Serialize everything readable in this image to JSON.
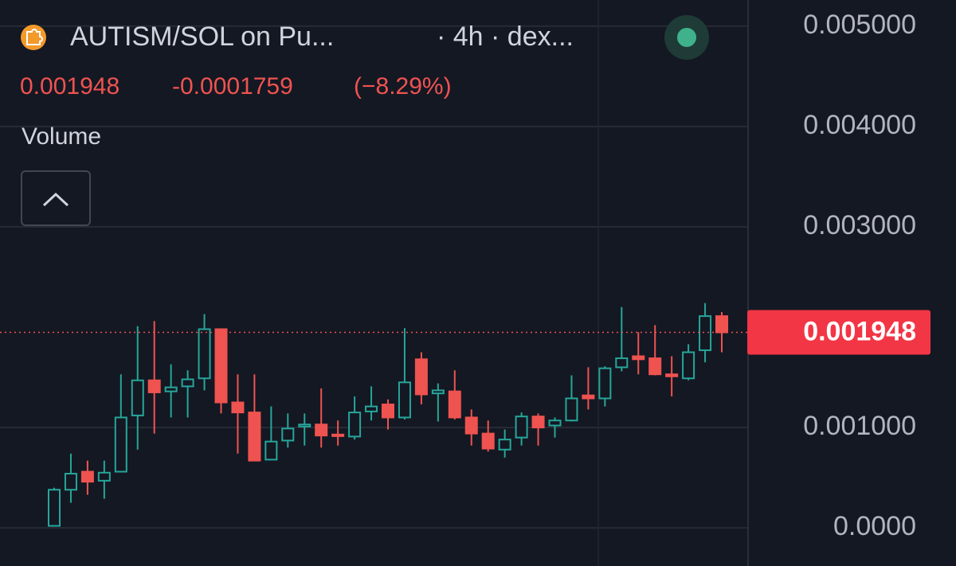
{
  "chart_data": {
    "type": "candlestick",
    "title": "AUTISM/SOL on Pu...",
    "subtitle": "· 4h · dex...",
    "last_price": 0.001948,
    "change": -0.0001759,
    "change_percent": {
      "value": -8.29,
      "label": "(−8.29%)"
    },
    "indicator": "Volume",
    "up_color": "#26a69a",
    "down_color": "#ef5350",
    "ylim": [
      -0.00038,
      0.00526
    ],
    "yticks": [
      {
        "value": 0.005,
        "label": "0.005000"
      },
      {
        "value": 0.004,
        "label": "0.004000"
      },
      {
        "value": 0.003,
        "label": "0.003000"
      },
      {
        "value": 0.001,
        "label": "0.001000"
      },
      {
        "value": 0,
        "label": "0.0000"
      }
    ],
    "grid": true,
    "open": [
      2e-05,
      0.00038,
      0.00056,
      0.00047,
      0.00056,
      0.00112,
      0.00147,
      0.00136,
      0.00141,
      0.00149,
      0.00198,
      0.00125,
      0.00115,
      0.00068,
      0.00087,
      0.00101,
      0.00103,
      0.00093,
      0.00091,
      0.00116,
      0.00123,
      0.0011,
      0.00168,
      0.00134,
      0.00136,
      0.0011,
      0.00094,
      0.00078,
      0.0009,
      0.00111,
      0.00102,
      0.00107,
      0.00132,
      0.00129,
      0.0016,
      0.00171,
      0.00169,
      0.00153,
      0.00149,
      0.00177,
      0.00211
    ],
    "high": [
      0.0004,
      0.00074,
      0.00067,
      0.00067,
      0.00153,
      0.00201,
      0.00206,
      0.00163,
      0.00157,
      0.00213,
      0.00198,
      0.00153,
      0.00153,
      0.00121,
      0.00114,
      0.00114,
      0.00139,
      0.00107,
      0.00131,
      0.00141,
      0.00128,
      0.00199,
      0.00175,
      0.00144,
      0.00157,
      0.00118,
      0.00107,
      0.00098,
      0.00115,
      0.00114,
      0.0011,
      0.00152,
      0.0016,
      0.00161,
      0.0022,
      0.00195,
      0.00202,
      0.00171,
      0.00183,
      0.00224,
      0.00215
    ],
    "low": [
      2e-05,
      0.00025,
      0.00033,
      0.00029,
      0.00056,
      0.00078,
      0.00094,
      0.0011,
      0.0011,
      0.00137,
      0.00114,
      0.00074,
      0.00067,
      0.00068,
      0.0008,
      0.00082,
      0.0008,
      0.00082,
      0.00088,
      0.00107,
      0.00098,
      0.00108,
      0.00123,
      0.00106,
      0.00108,
      0.00082,
      0.00076,
      0.0007,
      0.00082,
      0.00082,
      0.0009,
      0.00106,
      0.00118,
      0.00121,
      0.00156,
      0.00153,
      0.00152,
      0.00131,
      0.00147,
      0.00165,
      0.00175
    ],
    "close": [
      0.00038,
      0.00054,
      0.00046,
      0.00055,
      0.0011,
      0.00147,
      0.00135,
      0.0014,
      0.00148,
      0.00198,
      0.00125,
      0.00115,
      0.00067,
      0.00086,
      0.00099,
      0.00103,
      0.00092,
      0.00092,
      0.00115,
      0.00121,
      0.0011,
      0.00145,
      0.00133,
      0.00137,
      0.0011,
      0.00094,
      0.00079,
      0.00088,
      0.00111,
      0.001,
      0.00107,
      0.00129,
      0.00129,
      0.00159,
      0.00169,
      0.00168,
      0.00153,
      0.00151,
      0.00175,
      0.00211,
      0.001948
    ]
  }
}
